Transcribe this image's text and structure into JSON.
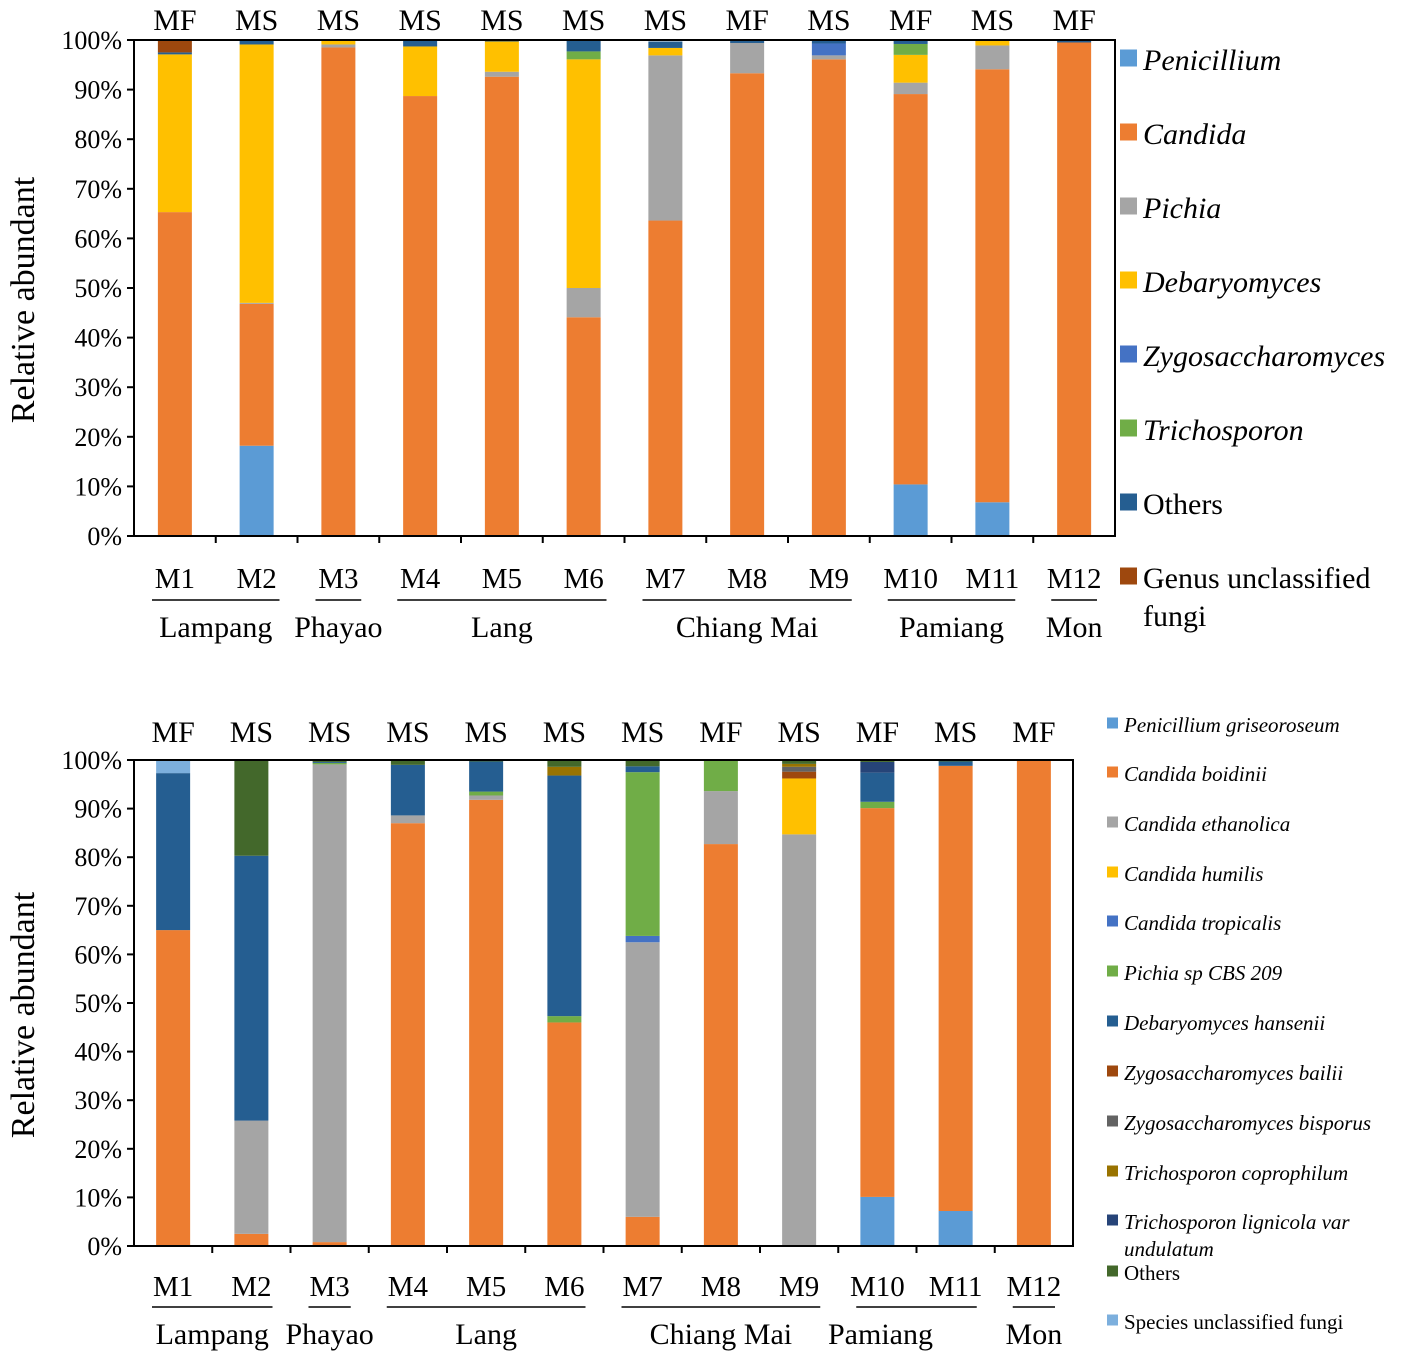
{
  "chart_data": [
    {
      "type": "bar",
      "stacked": true,
      "level": "genus",
      "title": "",
      "ylabel": "Relative abundant",
      "ylim": [
        0,
        100
      ],
      "y_ticks": [
        "0%",
        "10%",
        "20%",
        "30%",
        "40%",
        "50%",
        "60%",
        "70%",
        "80%",
        "90%",
        "100%"
      ],
      "categories": [
        "M1",
        "M2",
        "M3",
        "M4",
        "M5",
        "M6",
        "M7",
        "M8",
        "M9",
        "M10",
        "M11",
        "M12"
      ],
      "top_labels": [
        "MF",
        "MS",
        "MS",
        "MS",
        "MS",
        "MS",
        "MS",
        "MF",
        "MS",
        "MF",
        "MS",
        "MF"
      ],
      "groups": [
        {
          "name": "Lampang",
          "from": 0,
          "to": 1
        },
        {
          "name": "Phayao",
          "from": 2,
          "to": 2
        },
        {
          "name": "Lang",
          "from": 3,
          "to": 5
        },
        {
          "name": "Chiang Mai",
          "from": 6,
          "to": 8
        },
        {
          "name": "Pamiang",
          "from": 9,
          "to": 10
        },
        {
          "name": "Mon",
          "from": 11,
          "to": 11
        }
      ],
      "series": [
        {
          "name": "Penicillium",
          "italic": true,
          "color": "#5B9BD5",
          "values": [
            0,
            18.2,
            0,
            0,
            0,
            0,
            0,
            0,
            0,
            10.4,
            6.8,
            0
          ]
        },
        {
          "name": "Candida",
          "italic": true,
          "color": "#ED7D31",
          "values": [
            65.3,
            28.6,
            98.5,
            88.7,
            92.6,
            44.1,
            63.6,
            93.3,
            96.1,
            78.7,
            87.3,
            99.5
          ]
        },
        {
          "name": "Pichia",
          "italic": true,
          "color": "#A5A5A5",
          "values": [
            0,
            0.2,
            0.6,
            0,
            1.0,
            5.9,
            33.3,
            6.1,
            0.8,
            2.3,
            4.8,
            0
          ]
        },
        {
          "name": "Debaryomyces",
          "italic": true,
          "color": "#FFC000",
          "values": [
            31.8,
            52.1,
            0.7,
            10.0,
            6.1,
            46.1,
            1.5,
            0,
            0,
            5.6,
            1.0,
            0
          ]
        },
        {
          "name": "Zygosaccharomyces",
          "italic": true,
          "color": "#4472C4",
          "values": [
            0,
            0,
            0,
            0,
            0,
            0,
            0,
            0,
            2.4,
            0,
            0,
            0
          ]
        },
        {
          "name": "Trichosporon",
          "italic": true,
          "color": "#70AD47",
          "values": [
            0,
            0,
            0,
            0,
            0,
            1.6,
            0,
            0,
            0,
            2.2,
            0,
            0
          ]
        },
        {
          "name": "Others",
          "italic": false,
          "color": "#255E91",
          "values": [
            0.4,
            1.1,
            0.2,
            1.3,
            0.3,
            2.3,
            1.3,
            0.6,
            0.5,
            0.8,
            0.1,
            0.5
          ]
        },
        {
          "name": "Genus unclassified fungi",
          "italic": false,
          "color": "#9E480E",
          "values": [
            2.5,
            0,
            0,
            0,
            0,
            0,
            0,
            0,
            0.2,
            0,
            0,
            0
          ]
        }
      ]
    },
    {
      "type": "bar",
      "stacked": true,
      "level": "species",
      "title": "",
      "ylabel": "Relative abundant",
      "ylim": [
        0,
        100
      ],
      "y_ticks": [
        "0%",
        "10%",
        "20%",
        "30%",
        "40%",
        "50%",
        "60%",
        "70%",
        "80%",
        "90%",
        "100%"
      ],
      "categories": [
        "M1",
        "M2",
        "M3",
        "M4",
        "M5",
        "M6",
        "M7",
        "M8",
        "M9",
        "M10",
        "M11",
        "M12"
      ],
      "top_labels": [
        "MF",
        "MS",
        "MS",
        "MS",
        "MS",
        "MS",
        "MS",
        "MF",
        "MS",
        "MF",
        "MS",
        "MF"
      ],
      "groups": [
        {
          "name": "Lampang",
          "from": 0,
          "to": 1
        },
        {
          "name": "Phayao",
          "from": 2,
          "to": 2
        },
        {
          "name": "Lang",
          "from": 3,
          "to": 5
        },
        {
          "name": "Chiang Mai",
          "from": 6,
          "to": 8
        },
        {
          "name": "Pamiang",
          "from": 9,
          "to": 10
        },
        {
          "name": "Mon",
          "from": 11,
          "to": 11
        }
      ],
      "series": [
        {
          "name": "Penicillium griseoroseum",
          "italic": true,
          "color": "#5B9BD5",
          "values": [
            0,
            0,
            0,
            0,
            0,
            0,
            0,
            0,
            0,
            10.1,
            7.2,
            0
          ]
        },
        {
          "name": "Candida boidinii",
          "italic": true,
          "color": "#ED7D31",
          "values": [
            65.0,
            2.5,
            0.8,
            87.0,
            91.8,
            46.0,
            6.0,
            82.7,
            0,
            80.0,
            91.6,
            99.8
          ]
        },
        {
          "name": "Candida ethanolica",
          "italic": true,
          "color": "#A5A5A5",
          "values": [
            0,
            23.3,
            98.3,
            1.6,
            0.9,
            0,
            56.5,
            10.9,
            84.7,
            0,
            0,
            0
          ]
        },
        {
          "name": "Candida humilis",
          "italic": true,
          "color": "#FFC000",
          "values": [
            0,
            0,
            0,
            0,
            0,
            0,
            0,
            0,
            11.5,
            0,
            0,
            0
          ]
        },
        {
          "name": "Candida tropicalis",
          "italic": true,
          "color": "#4472C4",
          "values": [
            0,
            0,
            0,
            0,
            0,
            0,
            1.3,
            0,
            0,
            0,
            0,
            0
          ]
        },
        {
          "name": "Pichia sp CBS 209",
          "italic": true,
          "color": "#70AD47",
          "values": [
            0,
            0,
            0.3,
            0,
            0.8,
            1.3,
            33.7,
            6.2,
            0,
            1.3,
            0,
            0
          ]
        },
        {
          "name": "Debaryomyces hansenii",
          "italic": true,
          "color": "#255E91",
          "values": [
            32.3,
            54.5,
            0.2,
            10.4,
            6.2,
            49.5,
            1.2,
            0,
            0,
            6.0,
            0.9,
            0
          ]
        },
        {
          "name": "Zygosaccharomyces bailii",
          "italic": true,
          "color": "#9E480E",
          "values": [
            0,
            0,
            0,
            0,
            0,
            0,
            0,
            0,
            1.4,
            0,
            0,
            0
          ]
        },
        {
          "name": "Zygosaccharomyces bisporus",
          "italic": true,
          "color": "#636363",
          "values": [
            0,
            0,
            0,
            0,
            0,
            0,
            0,
            0,
            1.0,
            0,
            0,
            0
          ]
        },
        {
          "name": "Trichosporon coprophilum",
          "italic": true,
          "color": "#997300",
          "values": [
            0,
            0,
            0,
            0,
            0,
            1.8,
            0,
            0,
            0.6,
            0,
            0,
            0
          ]
        },
        {
          "name": "Trichosporon lignicola var undulatum",
          "italic": true,
          "color": "#264478",
          "values": [
            0,
            0,
            0,
            0,
            0,
            0,
            0,
            0,
            0,
            2.2,
            0,
            0
          ]
        },
        {
          "name": "Others",
          "italic": false,
          "color": "#43682B",
          "values": [
            0,
            19.7,
            0.4,
            1.0,
            0.3,
            1.4,
            1.3,
            0.2,
            0.8,
            0.4,
            0.3,
            0.2
          ]
        },
        {
          "name": "Species unclassified fungi",
          "italic": false,
          "color": "#7CAFDD",
          "values": [
            2.7,
            0,
            0,
            0,
            0,
            0,
            0,
            0,
            0,
            0,
            0,
            0
          ]
        }
      ]
    }
  ]
}
